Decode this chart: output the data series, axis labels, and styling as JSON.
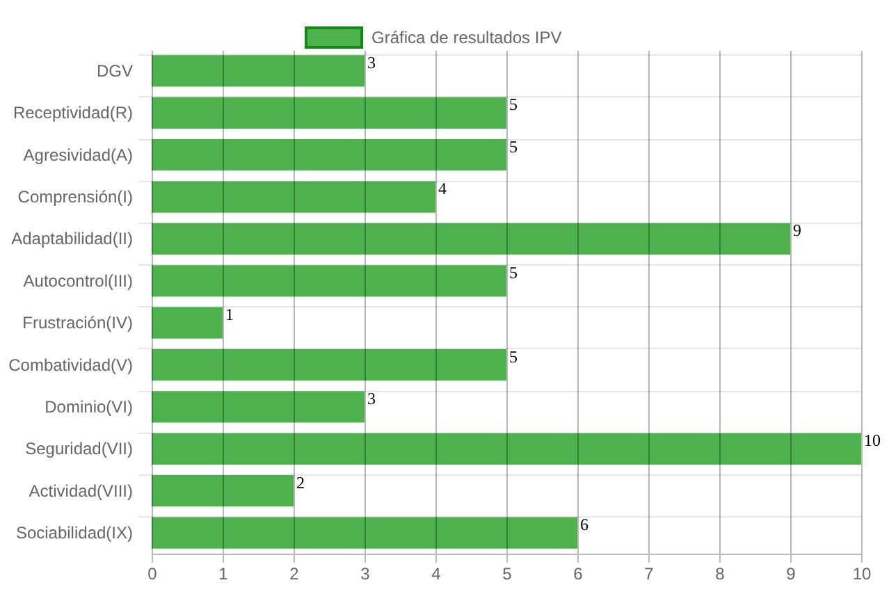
{
  "chart_data": {
    "type": "bar",
    "orientation": "horizontal",
    "categories": [
      "DGV",
      "Receptividad(R)",
      "Agresividad(A)",
      "Comprensión(I)",
      "Adaptabilidad(II)",
      "Autocontrol(III)",
      "Frustración(IV)",
      "Combatividad(V)",
      "Dominio(VI)",
      "Seguridad(VII)",
      "Actividad(VIII)",
      "Sociabilidad(IX)"
    ],
    "series": [
      {
        "name": "Gráfica de resultados IPV",
        "color": "#4db24d",
        "values": [
          3,
          5,
          5,
          4,
          9,
          5,
          1,
          5,
          3,
          10,
          2,
          6
        ]
      }
    ],
    "xlim": [
      0,
      10
    ],
    "xticks": [
      0,
      1,
      2,
      3,
      4,
      5,
      6,
      7,
      8,
      9,
      10
    ],
    "grid": true,
    "legend": "top",
    "data_labels": true
  }
}
